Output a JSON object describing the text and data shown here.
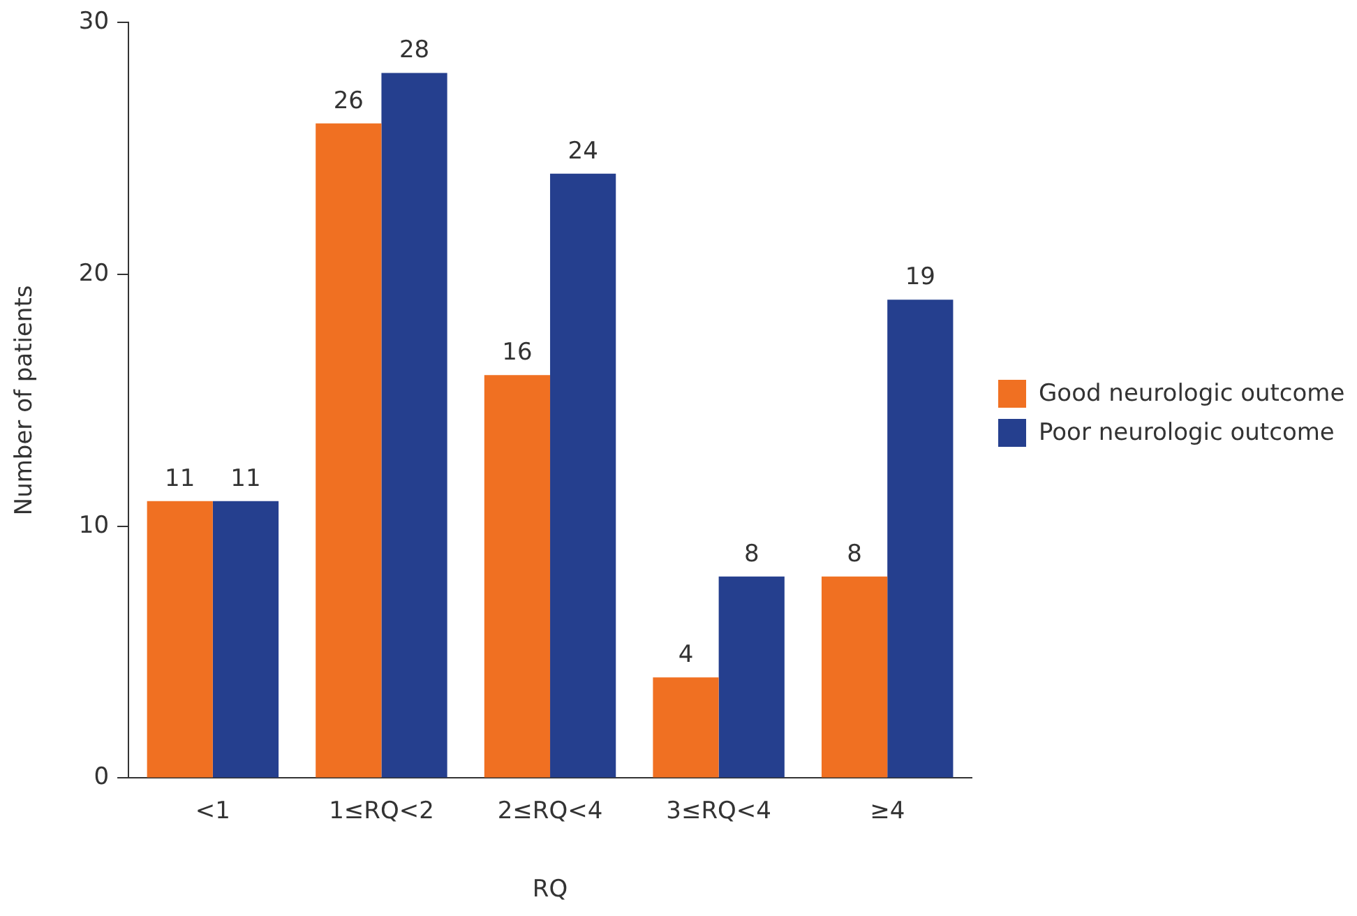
{
  "chart_data": {
    "type": "bar",
    "xlabel": "RQ",
    "ylabel": "Number of patients",
    "categories": [
      "<1",
      "1≤RQ<2",
      "2≤RQ<4",
      "3≤RQ<4",
      "≥4"
    ],
    "series": [
      {
        "name": "Good neurologic outcome",
        "color": "#f07022",
        "values": [
          11,
          26,
          16,
          4,
          8
        ]
      },
      {
        "name": "Poor neurologic outcome",
        "color": "#253f8e",
        "values": [
          11,
          28,
          24,
          8,
          19
        ]
      }
    ],
    "ylim": [
      0,
      30
    ],
    "yticks": [
      0,
      10,
      20,
      30
    ],
    "grid": false,
    "legend": "right",
    "data_labels": true
  }
}
